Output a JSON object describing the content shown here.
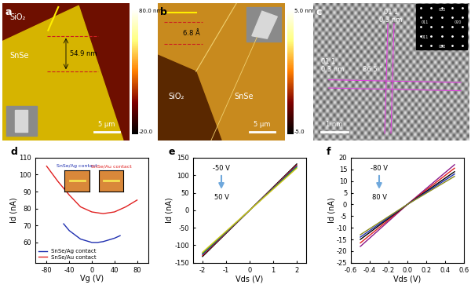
{
  "images": [
    {
      "panel": "a",
      "regions": [
        "SiO₂",
        "SnSe"
      ],
      "step_height": "54.9 nm",
      "scale_bar": "5 μm",
      "colorbar": {
        "max": "80.0 nm",
        "min": "-20.0"
      }
    },
    {
      "panel": "b",
      "regions": [
        "SiO₂",
        "SnSe"
      ],
      "step_height": "6.8 Å",
      "scale_bar": "5 μm",
      "colorbar": {
        "max": "5.0 nm",
        "min": "-5.0"
      }
    },
    {
      "panel": "c",
      "planes": [
        "0̄1 1",
        "0̄1 1"
      ],
      "spacings": [
        "0.3 nm",
        "0.3 nm"
      ],
      "angle": "86.5 °",
      "scale_bar": "1 nm",
      "diffraction_spots": [
        "002",
        "011",
        "020",
        "011",
        "002"
      ]
    }
  ],
  "chart_data": [
    {
      "panel": "d",
      "type": "line",
      "x_label": "Vg (V)",
      "y_label": "Id (nA)",
      "xlim": [
        -100,
        100
      ],
      "xticks": [
        -80,
        -40,
        0,
        40,
        80
      ],
      "ylim": [
        48,
        110
      ],
      "yticks": [
        60,
        70,
        80,
        90,
        100,
        110
      ],
      "legend": "lower left",
      "insets": [
        "SnSe/Ag contact",
        "SnSe/Au contact"
      ],
      "series": [
        {
          "name": "SnSe/Ag contact",
          "color": "#1f2fb0",
          "x": [
            -50,
            -40,
            -20,
            0,
            10,
            20,
            40,
            50
          ],
          "values": [
            71,
            67,
            62,
            60,
            60,
            60.5,
            62.5,
            64
          ]
        },
        {
          "name": "SnSe/Au contact",
          "color": "#e02020",
          "x": [
            -80,
            -60,
            -40,
            -20,
            0,
            20,
            40,
            60,
            80
          ],
          "values": [
            105,
            96,
            88,
            81,
            78,
            77,
            78,
            81,
            85
          ]
        }
      ]
    },
    {
      "panel": "e",
      "type": "line",
      "x_label": "Vds (V)",
      "y_label": "Id (nA)",
      "xlim": [
        -2.4,
        2.4
      ],
      "xticks": [
        -2,
        -1,
        0,
        1,
        2
      ],
      "ylim": [
        -150,
        150
      ],
      "yticks": [
        -150,
        -100,
        -50,
        0,
        50,
        100,
        150
      ],
      "annotations": [
        "-50 V",
        "50 V"
      ],
      "series": [
        {
          "color": "#000000",
          "x": [
            -2,
            0,
            2
          ],
          "values": [
            -132,
            0,
            132
          ]
        },
        {
          "color": "#e02020",
          "x": [
            -2,
            0,
            2
          ],
          "values": [
            -129,
            0,
            129
          ]
        },
        {
          "color": "#1f2fb0",
          "x": [
            -2,
            0,
            2
          ],
          "values": [
            -126,
            0,
            126
          ]
        },
        {
          "color": "#2a9d2a",
          "x": [
            -2,
            0,
            2
          ],
          "values": [
            -123,
            0,
            123
          ]
        },
        {
          "color": "#d4c21a",
          "x": [
            -2,
            0,
            2
          ],
          "values": [
            -120,
            0,
            120
          ]
        }
      ]
    },
    {
      "panel": "f",
      "type": "line",
      "x_label": "Vds (V)",
      "y_label": "Id (nA)",
      "xlim": [
        -0.6,
        0.6
      ],
      "xticks": [
        -0.6,
        -0.4,
        -0.2,
        0.0,
        0.2,
        0.4,
        0.6
      ],
      "ylim": [
        -25,
        20
      ],
      "yticks": [
        -25,
        -20,
        -15,
        -10,
        -5,
        0,
        5,
        10,
        15,
        20
      ],
      "annotations": [
        "-80 V",
        "80 V"
      ],
      "series": [
        {
          "color": "#8b1a8b",
          "x": [
            -0.5,
            0.0,
            0.5
          ],
          "values": [
            -18,
            0,
            17
          ]
        },
        {
          "color": "#e02020",
          "x": [
            -0.5,
            0.0,
            0.5
          ],
          "values": [
            -16.5,
            0,
            15.5
          ]
        },
        {
          "color": "#000000",
          "x": [
            -0.5,
            0.0,
            0.5
          ],
          "values": [
            -15,
            0,
            14
          ]
        },
        {
          "color": "#1f2fb0",
          "x": [
            -0.5,
            0.0,
            0.5
          ],
          "values": [
            -14,
            0,
            13
          ]
        },
        {
          "color": "#8a8a1a",
          "x": [
            -0.5,
            0.0,
            0.5
          ],
          "values": [
            -13,
            0,
            12
          ]
        }
      ]
    }
  ]
}
